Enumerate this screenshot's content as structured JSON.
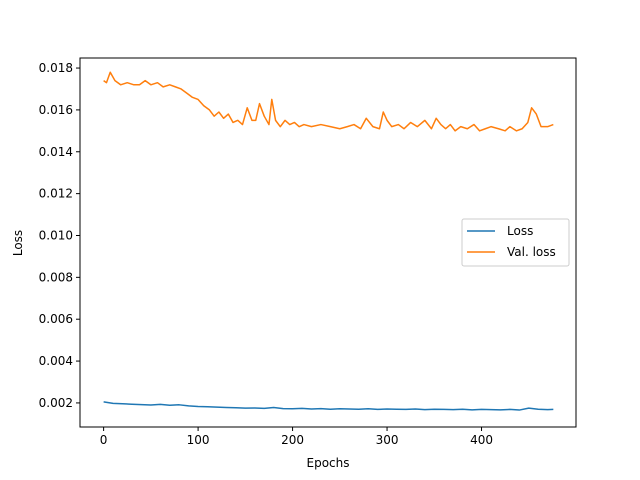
{
  "chart_data": {
    "type": "line",
    "title": "",
    "xlabel": "Epochs",
    "ylabel": "Loss",
    "xlim": [
      -25,
      500
    ],
    "ylim": [
      0.00085,
      0.01848
    ],
    "xticks": [
      0,
      100,
      200,
      300,
      400
    ],
    "xtick_labels": [
      "0",
      "100",
      "200",
      "300",
      "400"
    ],
    "yticks": [
      0.002,
      0.004,
      0.006,
      0.008,
      0.01,
      0.012,
      0.014,
      0.016,
      0.018
    ],
    "ytick_labels": [
      "0.002",
      "0.004",
      "0.006",
      "0.008",
      "0.010",
      "0.012",
      "0.014",
      "0.016",
      "0.018"
    ],
    "grid": false,
    "legend_position": "center-right",
    "series": [
      {
        "name": "Loss",
        "color": "#1f77b4",
        "x": [
          0,
          10,
          20,
          30,
          40,
          50,
          60,
          70,
          80,
          90,
          100,
          110,
          120,
          130,
          140,
          150,
          160,
          170,
          180,
          190,
          200,
          210,
          220,
          230,
          240,
          250,
          260,
          270,
          280,
          290,
          300,
          310,
          320,
          330,
          340,
          350,
          360,
          370,
          380,
          390,
          400,
          410,
          420,
          430,
          440,
          450,
          460,
          470,
          476
        ],
        "y": [
          0.00205,
          0.00198,
          0.00196,
          0.00194,
          0.00192,
          0.0019,
          0.00193,
          0.00189,
          0.00191,
          0.00186,
          0.00183,
          0.00182,
          0.0018,
          0.00178,
          0.00177,
          0.00175,
          0.00176,
          0.00174,
          0.00178,
          0.00173,
          0.00172,
          0.00174,
          0.00171,
          0.00173,
          0.0017,
          0.00172,
          0.00171,
          0.0017,
          0.00172,
          0.00169,
          0.00171,
          0.0017,
          0.00169,
          0.00171,
          0.00168,
          0.0017,
          0.00169,
          0.00168,
          0.0017,
          0.00167,
          0.00169,
          0.00168,
          0.00167,
          0.00169,
          0.00166,
          0.00175,
          0.0017,
          0.00168,
          0.00169
        ]
      },
      {
        "name": "Val. loss",
        "color": "#ff7f0e",
        "x": [
          0,
          3,
          7,
          12,
          18,
          25,
          32,
          38,
          44,
          50,
          57,
          63,
          70,
          76,
          82,
          88,
          94,
          100,
          106,
          112,
          117,
          122,
          127,
          132,
          137,
          142,
          147,
          152,
          157,
          161,
          165,
          170,
          175,
          178,
          182,
          187,
          192,
          197,
          202,
          207,
          212,
          220,
          230,
          240,
          250,
          258,
          265,
          272,
          278,
          285,
          292,
          296,
          300,
          305,
          312,
          318,
          325,
          332,
          340,
          347,
          352,
          357,
          362,
          367,
          372,
          378,
          385,
          392,
          398,
          404,
          410,
          418,
          425,
          430,
          437,
          443,
          449,
          453,
          458,
          463,
          470,
          476
        ],
        "y": [
          0.0174,
          0.0173,
          0.0178,
          0.0174,
          0.0172,
          0.0173,
          0.0172,
          0.0172,
          0.0174,
          0.0172,
          0.0173,
          0.0171,
          0.0172,
          0.0171,
          0.017,
          0.0168,
          0.0166,
          0.0165,
          0.0162,
          0.016,
          0.0157,
          0.0159,
          0.0156,
          0.0158,
          0.0154,
          0.0155,
          0.0153,
          0.0161,
          0.0155,
          0.0155,
          0.0163,
          0.0157,
          0.0153,
          0.0165,
          0.0155,
          0.0152,
          0.0155,
          0.0153,
          0.0154,
          0.0152,
          0.0153,
          0.0152,
          0.0153,
          0.0152,
          0.0151,
          0.0152,
          0.0153,
          0.0151,
          0.0156,
          0.0152,
          0.0151,
          0.0159,
          0.0155,
          0.0152,
          0.0153,
          0.0151,
          0.0154,
          0.0152,
          0.0155,
          0.0151,
          0.0156,
          0.0153,
          0.0151,
          0.0153,
          0.015,
          0.0152,
          0.0151,
          0.0153,
          0.015,
          0.0151,
          0.0152,
          0.0151,
          0.015,
          0.0152,
          0.015,
          0.0151,
          0.0154,
          0.0161,
          0.0158,
          0.0152,
          0.0152,
          0.0153
        ]
      }
    ]
  }
}
